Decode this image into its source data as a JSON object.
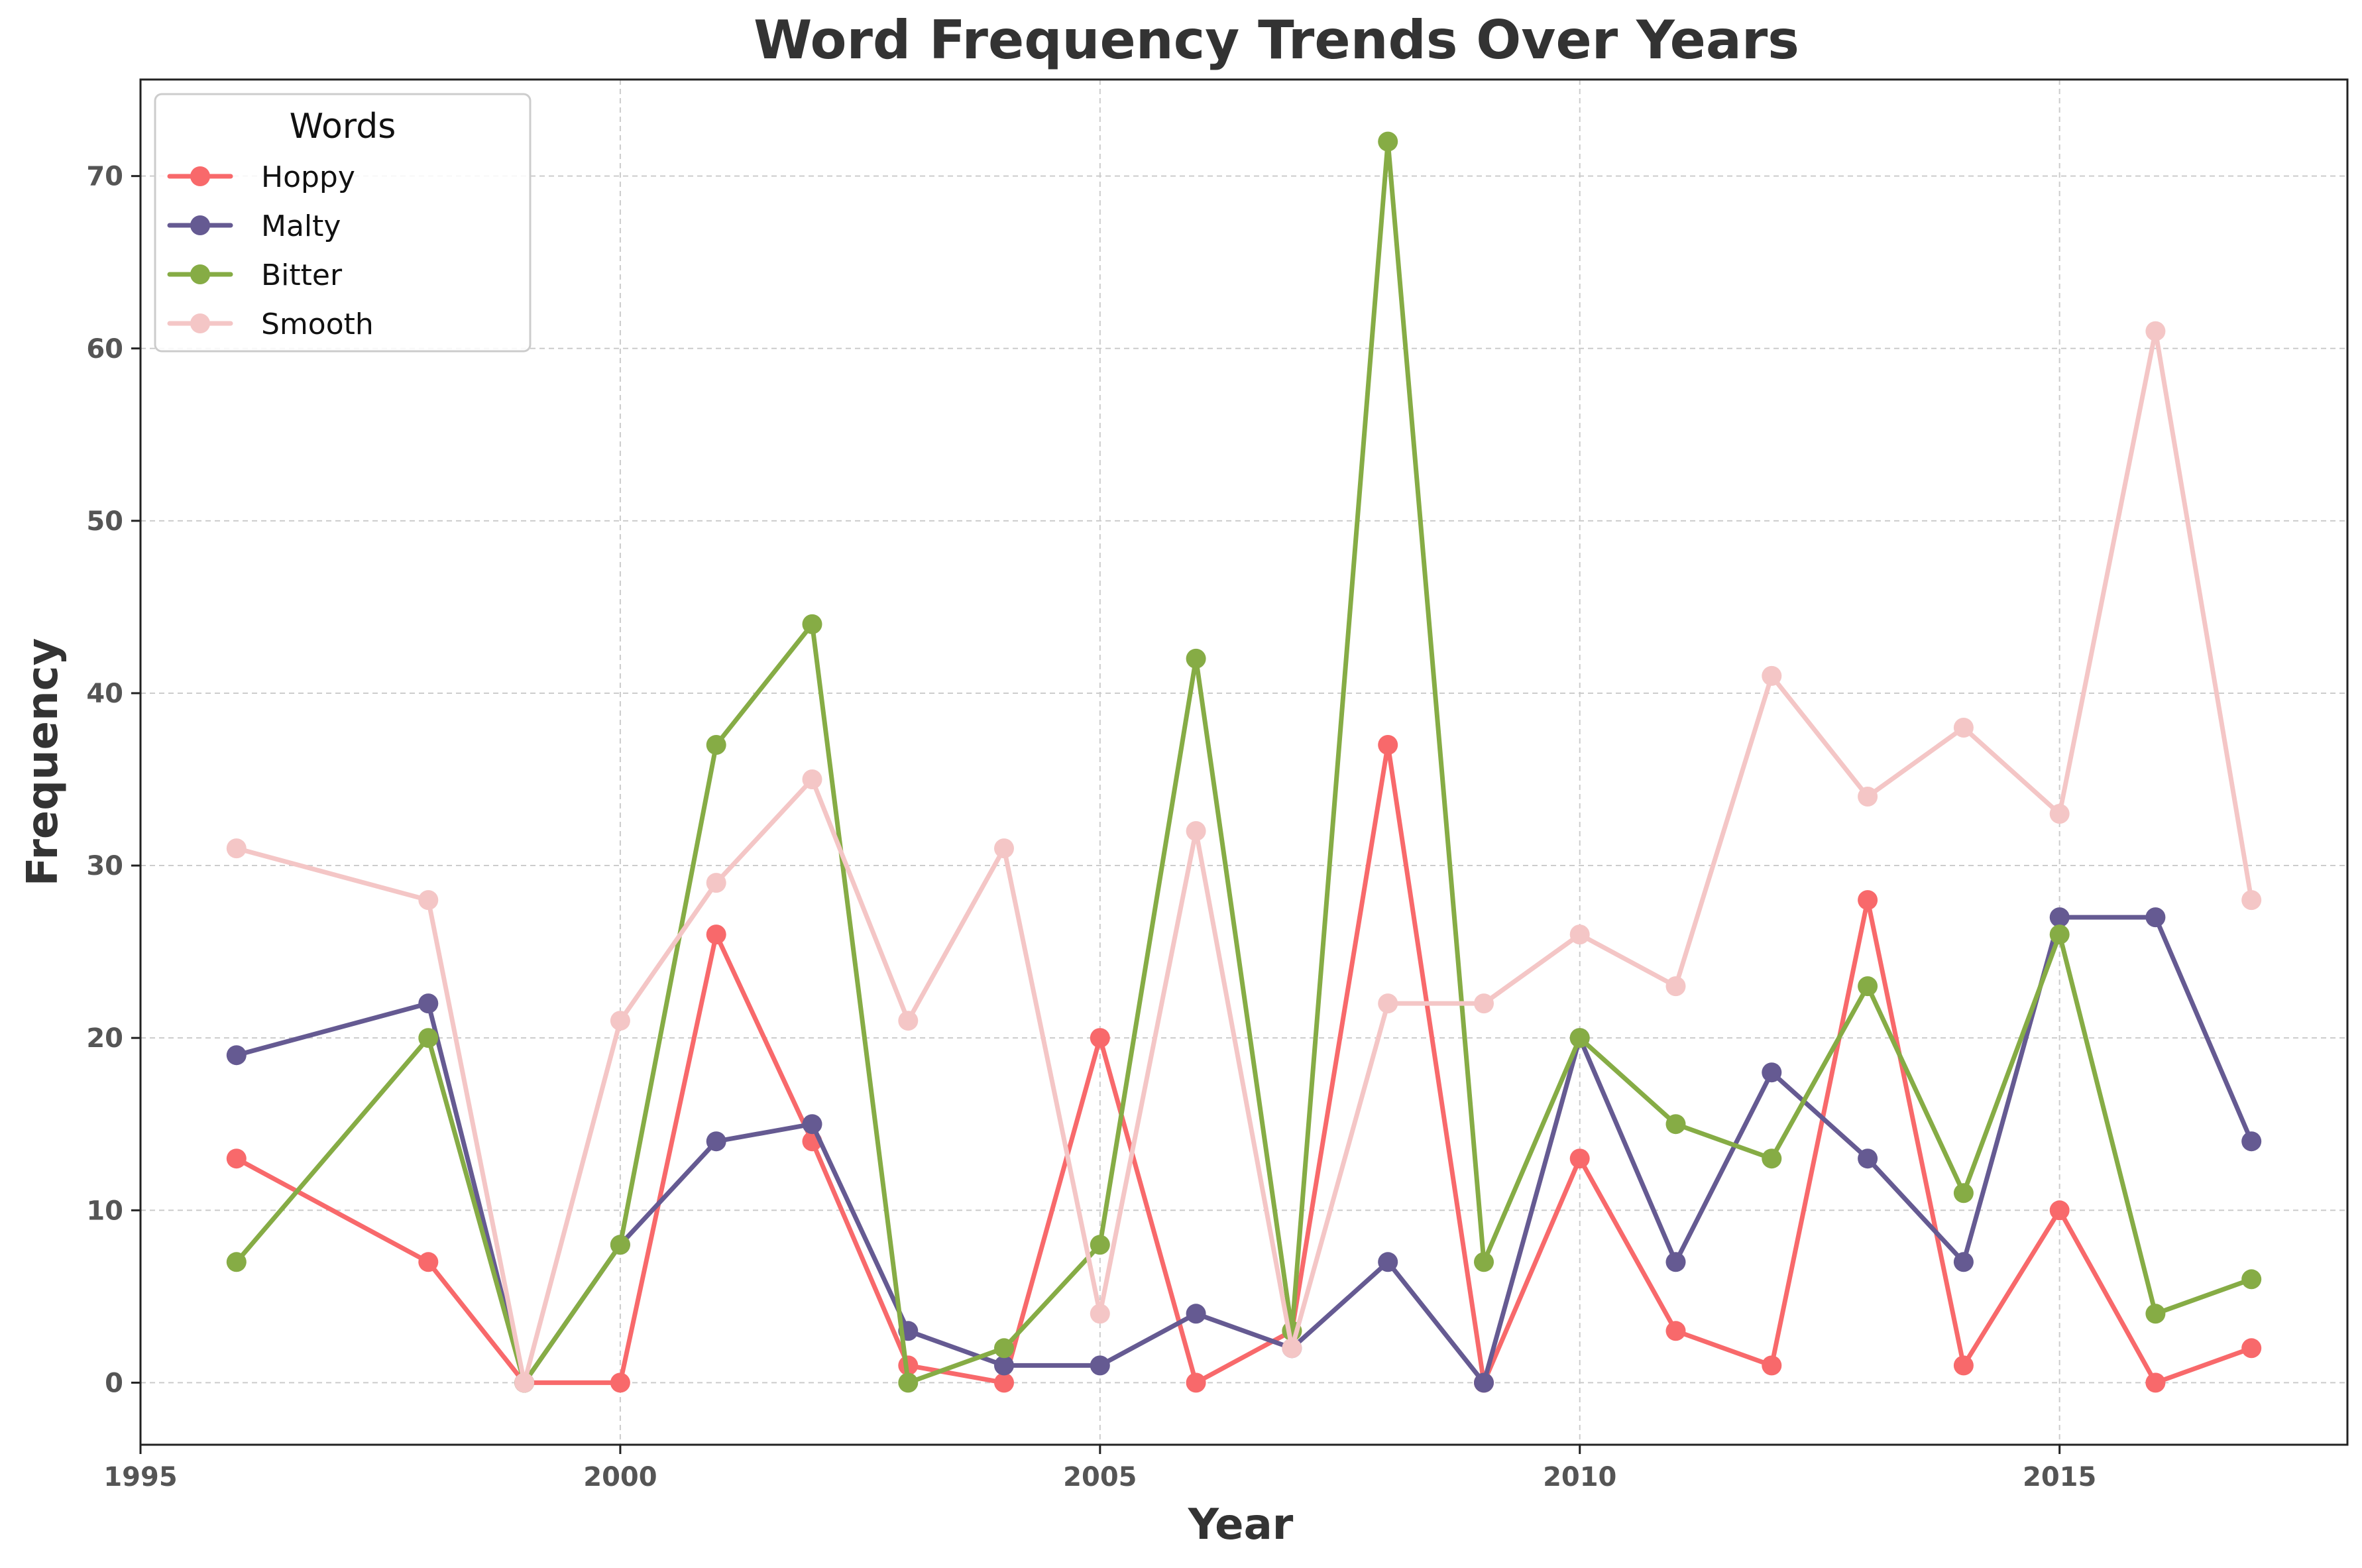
{
  "chart_data": {
    "type": "line",
    "title": "Word Frequency Trends Over Years",
    "xlabel": "Year",
    "ylabel": "Frequency",
    "xlim": [
      1995,
      2018
    ],
    "ylim": [
      -3.6,
      75.6
    ],
    "xticks": [
      1995,
      2000,
      2005,
      2010,
      2015
    ],
    "yticks": [
      0,
      10,
      20,
      30,
      40,
      50,
      60,
      70
    ],
    "grid": true,
    "legend": {
      "title": "Words",
      "placement": "top-left"
    },
    "x": [
      1996,
      1998,
      1999,
      2000,
      2001,
      2002,
      2003,
      2004,
      2005,
      2006,
      2007,
      2008,
      2009,
      2010,
      2011,
      2012,
      2013,
      2014,
      2015,
      2016,
      2017
    ],
    "series": [
      {
        "name": "Hoppy",
        "color": "#f8696b",
        "values": [
          13,
          7,
          0,
          0,
          26,
          14,
          1,
          0,
          20,
          0,
          3,
          37,
          0,
          13,
          3,
          1,
          28,
          1,
          10,
          0,
          2
        ]
      },
      {
        "name": "Malty",
        "color": "#655a92",
        "values": [
          19,
          22,
          0,
          8,
          14,
          15,
          3,
          1,
          1,
          4,
          2,
          7,
          0,
          20,
          7,
          18,
          13,
          7,
          27,
          27,
          14
        ]
      },
      {
        "name": "Bitter",
        "color": "#86ac45",
        "values": [
          7,
          20,
          0,
          8,
          37,
          44,
          0,
          2,
          8,
          42,
          3,
          72,
          7,
          20,
          15,
          13,
          23,
          11,
          26,
          4,
          6
        ]
      },
      {
        "name": "Smooth",
        "color": "#f4c6c6",
        "values": [
          31,
          28,
          0,
          21,
          29,
          35,
          21,
          31,
          4,
          32,
          2,
          22,
          22,
          26,
          23,
          41,
          34,
          38,
          33,
          61,
          28
        ]
      }
    ]
  }
}
